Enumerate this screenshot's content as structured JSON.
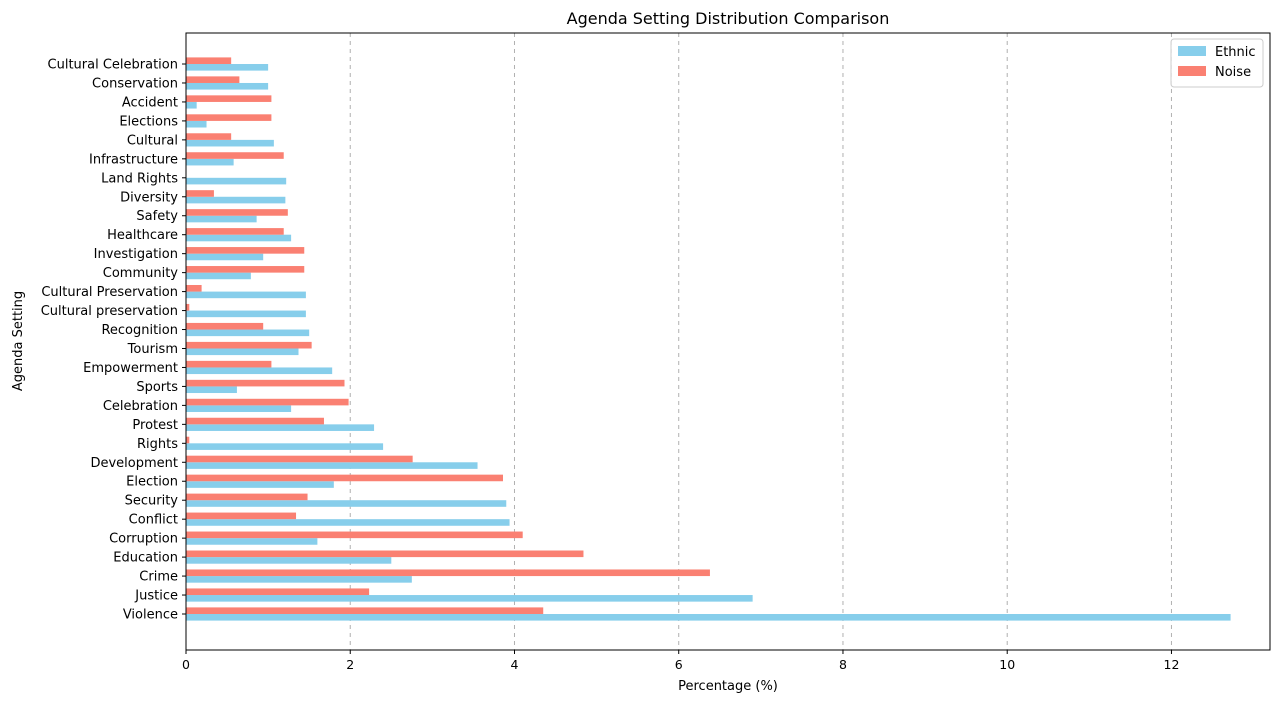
{
  "chart_data": {
    "type": "bar",
    "orientation": "horizontal",
    "title": "Agenda Setting Distribution Comparison",
    "xlabel": "Percentage (%)",
    "ylabel": "Agenda Setting",
    "xlim": [
      0,
      13.2
    ],
    "xticks": [
      0,
      2,
      4,
      6,
      8,
      10,
      12
    ],
    "grid": "x-axis dashed",
    "legend_position": "top-right",
    "categories": [
      "Violence",
      "Justice",
      "Crime",
      "Education",
      "Corruption",
      "Conflict",
      "Security",
      "Election",
      "Development",
      "Rights",
      "Protest",
      "Celebration",
      "Sports",
      "Empowerment",
      "Tourism",
      "Recognition",
      "Cultural preservation",
      "Cultural Preservation",
      "Community",
      "Investigation",
      "Healthcare",
      "Safety",
      "Diversity",
      "Land Rights",
      "Infrastructure",
      "Cultural",
      "Elections",
      "Accident",
      "Conservation",
      "Cultural Celebration"
    ],
    "series": [
      {
        "name": "Ethnic",
        "color": "#87CEEB",
        "values": [
          12.72,
          6.9,
          2.75,
          2.5,
          1.6,
          3.94,
          3.9,
          1.8,
          3.55,
          2.4,
          2.29,
          1.28,
          0.62,
          1.78,
          1.37,
          1.5,
          1.46,
          1.46,
          0.79,
          0.94,
          1.28,
          0.86,
          1.21,
          1.22,
          0.58,
          1.07,
          0.25,
          0.13,
          1.0,
          1.0
        ]
      },
      {
        "name": "Noise",
        "color": "#FA8072",
        "values": [
          4.35,
          2.23,
          6.38,
          4.84,
          4.1,
          1.34,
          1.48,
          3.86,
          2.76,
          0.04,
          1.68,
          1.98,
          1.93,
          1.04,
          1.53,
          0.94,
          0.04,
          0.19,
          1.44,
          1.44,
          1.19,
          1.24,
          0.34,
          0.0,
          1.19,
          0.55,
          1.04,
          1.04,
          0.65,
          0.55
        ]
      }
    ]
  }
}
